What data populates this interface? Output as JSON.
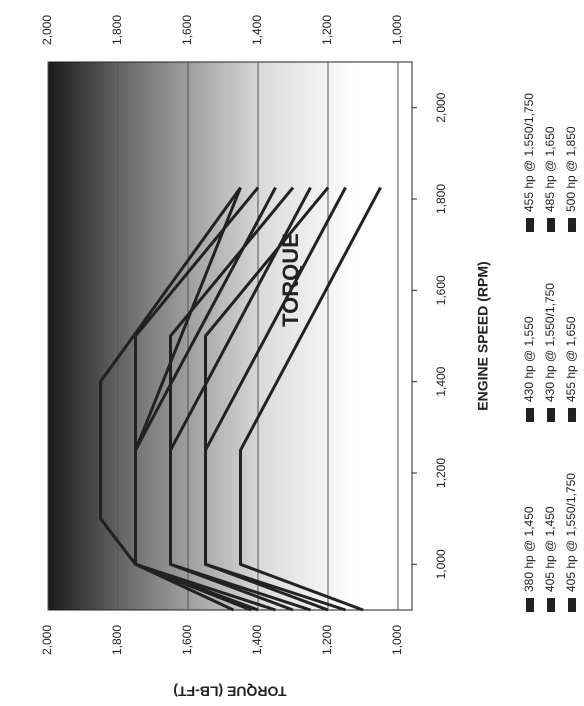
{
  "chart_data": {
    "type": "line",
    "title": "TORQUE",
    "x_label": "ENGINE SPEED (RPM)",
    "y_label": "TORQUE (LB-FT)",
    "xlim": [
      900,
      2100
    ],
    "xticks": [
      {
        "value": 1000,
        "label": "1,000"
      },
      {
        "value": 1200,
        "label": "1,200"
      },
      {
        "value": 1400,
        "label": "1,400"
      },
      {
        "value": 1600,
        "label": "1,600"
      },
      {
        "value": 1800,
        "label": "1,800"
      },
      {
        "value": 2000,
        "label": "2,000"
      }
    ],
    "ylim": [
      960,
      2000
    ],
    "yticks": [
      {
        "value": 1000,
        "label": "1,000"
      },
      {
        "value": 1200,
        "label": "1,200"
      },
      {
        "value": 1400,
        "label": "1,400"
      },
      {
        "value": 1600,
        "label": "1,600"
      },
      {
        "value": 1800,
        "label": "1,800"
      },
      {
        "value": 2000,
        "label": "2,000"
      }
    ],
    "grid": true,
    "series": [
      {
        "name": "380 hp @ 1,450",
        "color": "#222222",
        "x": [
          900,
          1000,
          1250,
          1825
        ],
        "values": [
          1100,
          1450,
          1450,
          1050
        ]
      },
      {
        "name": "430 hp @ 1,550",
        "color": "#222222",
        "x": [
          900,
          1000,
          1250,
          1825
        ],
        "values": [
          1250,
          1650,
          1650,
          1250
        ]
      },
      {
        "name": "455 hp @ 1,550/1,750",
        "color": "#222222",
        "x": [
          900,
          1000,
          1500,
          1825
        ],
        "values": [
          1400,
          1750,
          1750,
          1400
        ]
      },
      {
        "name": "405 hp @ 1,450",
        "color": "#222222",
        "x": [
          900,
          1000,
          1250,
          1825
        ],
        "values": [
          1150,
          1550,
          1550,
          1150
        ]
      },
      {
        "name": "430 hp @ 1,550/1,750",
        "color": "#222222",
        "x": [
          900,
          1000,
          1500,
          1825
        ],
        "values": [
          1300,
          1650,
          1650,
          1300
        ]
      },
      {
        "name": "485 hp @ 1,650",
        "color": "#222222",
        "x": [
          900,
          1000,
          1250,
          1825
        ],
        "values": [
          1420,
          1750,
          1750,
          1450
        ]
      },
      {
        "name": "405 hp @ 1,550/1,750",
        "color": "#222222",
        "x": [
          900,
          1000,
          1500,
          1825
        ],
        "values": [
          1200,
          1550,
          1550,
          1200
        ]
      },
      {
        "name": "455 hp @ 1,650",
        "color": "#222222",
        "x": [
          900,
          1000,
          1250,
          1825
        ],
        "values": [
          1350,
          1750,
          1750,
          1350
        ]
      },
      {
        "name": "500 hp @ 1,850",
        "color": "#222222",
        "x": [
          900,
          1000,
          1100,
          1400,
          1825
        ],
        "values": [
          1470,
          1750,
          1850,
          1850,
          1450
        ]
      }
    ]
  }
}
